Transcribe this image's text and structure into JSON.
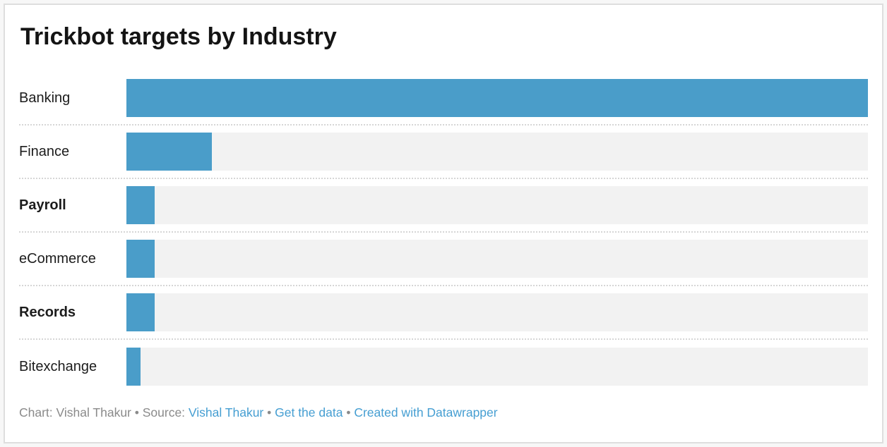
{
  "chart": {
    "title": "Trickbot targets by Industry",
    "rows": [
      {
        "label": "Banking",
        "bold": false,
        "pct": 100
      },
      {
        "label": "Finance",
        "bold": false,
        "pct": 11.5
      },
      {
        "label": "Payroll",
        "bold": true,
        "pct": 3.8
      },
      {
        "label": "eCommerce",
        "bold": false,
        "pct": 3.8
      },
      {
        "label": "Records",
        "bold": true,
        "pct": 3.8
      },
      {
        "label": "Bitexchange",
        "bold": false,
        "pct": 1.9
      }
    ]
  },
  "chart_data": {
    "type": "bar",
    "orientation": "horizontal",
    "title": "Trickbot targets by Industry",
    "categories": [
      "Banking",
      "Finance",
      "Payroll",
      "eCommerce",
      "Records",
      "Bitexchange"
    ],
    "values_pct_of_max": [
      100,
      11.5,
      3.8,
      3.8,
      3.8,
      1.9
    ],
    "bold_categories": [
      "Payroll",
      "Records"
    ],
    "value_axis_visible": false,
    "value_labels_visible": false,
    "legend": "none",
    "grid": "dotted-row-separators",
    "bar_color": "#4a9dc9",
    "track_color": "#f2f2f2"
  },
  "footer": {
    "prefix": "Chart: Vishal Thakur • Source: ",
    "separator": " • ",
    "links": [
      {
        "label": "Vishal Thakur"
      },
      {
        "label": "Get the data"
      },
      {
        "label": "Created with Datawrapper"
      }
    ]
  },
  "colors": {
    "bar": "#4a9dc9",
    "track": "#f2f2f2",
    "link": "#459ed2",
    "footer_text": "#8a8a8a",
    "title_text": "#141414",
    "label_text": "#1c1c1c",
    "card_border": "#dedede",
    "page_background": "#f7f7f7"
  }
}
